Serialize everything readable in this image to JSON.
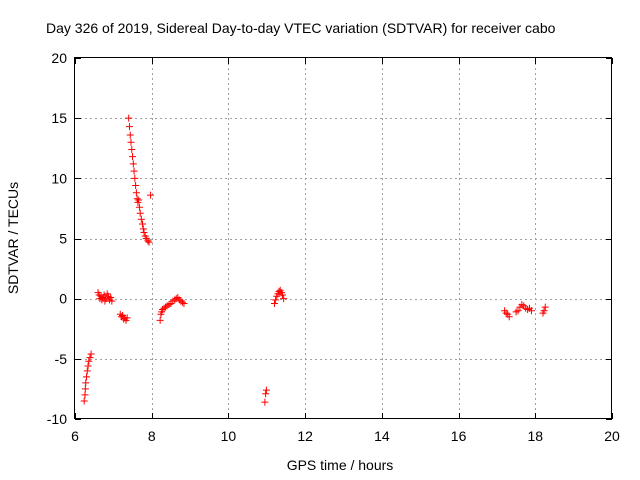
{
  "chart_data": {
    "type": "scatter",
    "title": "Day 326 of 2019, Sidereal Day-to-day VTEC variation (SDTVAR) for receiver cabo",
    "xlabel": "GPS time / hours",
    "ylabel": "SDTVAR / TECUs",
    "xlim": [
      6,
      20
    ],
    "ylim": [
      -10,
      20
    ],
    "xticks": [
      6,
      8,
      10,
      12,
      14,
      16,
      18,
      20
    ],
    "yticks": [
      -10,
      -5,
      0,
      5,
      10,
      15,
      20
    ],
    "grid": true,
    "legend": "none",
    "marker": "plus",
    "color": "#ff0000",
    "series": [
      {
        "name": "SDTVAR",
        "points": [
          [
            6.24,
            -8.5
          ],
          [
            6.26,
            -8.0
          ],
          [
            6.27,
            -7.5
          ],
          [
            6.28,
            -7.0
          ],
          [
            6.3,
            -6.5
          ],
          [
            6.32,
            -6.0
          ],
          [
            6.34,
            -5.6
          ],
          [
            6.36,
            -5.2
          ],
          [
            6.39,
            -4.9
          ],
          [
            6.42,
            -4.6
          ],
          [
            6.6,
            0.5
          ],
          [
            6.63,
            0.3
          ],
          [
            6.65,
            0.0
          ],
          [
            6.68,
            0.2
          ],
          [
            6.7,
            -0.1
          ],
          [
            6.73,
            0.1
          ],
          [
            6.76,
            0.3
          ],
          [
            6.78,
            -0.2
          ],
          [
            6.81,
            0.0
          ],
          [
            6.84,
            0.4
          ],
          [
            6.87,
            0.2
          ],
          [
            6.9,
            -0.1
          ],
          [
            6.93,
            0.1
          ],
          [
            6.96,
            -0.2
          ],
          [
            7.18,
            -1.3
          ],
          [
            7.21,
            -1.5
          ],
          [
            7.24,
            -1.4
          ],
          [
            7.27,
            -1.7
          ],
          [
            7.3,
            -1.6
          ],
          [
            7.33,
            -1.8
          ],
          [
            7.36,
            -1.6
          ],
          [
            7.4,
            15.0
          ],
          [
            7.42,
            14.3
          ],
          [
            7.44,
            13.6
          ],
          [
            7.46,
            13.0
          ],
          [
            7.48,
            12.4
          ],
          [
            7.5,
            11.8
          ],
          [
            7.52,
            11.2
          ],
          [
            7.54,
            10.6
          ],
          [
            7.56,
            10.0
          ],
          [
            7.58,
            9.4
          ],
          [
            7.6,
            8.8
          ],
          [
            7.62,
            8.3
          ],
          [
            7.64,
            8.0
          ],
          [
            7.66,
            8.2
          ],
          [
            7.68,
            7.6
          ],
          [
            7.7,
            7.1
          ],
          [
            7.73,
            6.6
          ],
          [
            7.76,
            6.2
          ],
          [
            7.78,
            5.8
          ],
          [
            7.8,
            5.5
          ],
          [
            7.83,
            5.2
          ],
          [
            7.86,
            5.0
          ],
          [
            7.9,
            4.8
          ],
          [
            7.93,
            4.7
          ],
          [
            7.97,
            8.6
          ],
          [
            8.22,
            -1.8
          ],
          [
            8.24,
            -1.3
          ],
          [
            8.26,
            -1.1
          ],
          [
            8.28,
            -0.9
          ],
          [
            8.32,
            -0.8
          ],
          [
            8.36,
            -0.7
          ],
          [
            8.4,
            -0.6
          ],
          [
            8.45,
            -0.5
          ],
          [
            8.5,
            -0.4
          ],
          [
            8.55,
            -0.2
          ],
          [
            8.6,
            -0.1
          ],
          [
            8.64,
            0.0
          ],
          [
            8.68,
            0.1
          ],
          [
            8.72,
            -0.1
          ],
          [
            8.76,
            -0.2
          ],
          [
            8.8,
            -0.3
          ],
          [
            8.84,
            -0.4
          ],
          [
            10.95,
            -8.6
          ],
          [
            10.97,
            -7.9
          ],
          [
            10.99,
            -7.6
          ],
          [
            11.2,
            -0.4
          ],
          [
            11.23,
            -0.1
          ],
          [
            11.26,
            0.2
          ],
          [
            11.29,
            0.4
          ],
          [
            11.32,
            0.6
          ],
          [
            11.35,
            0.7
          ],
          [
            11.38,
            0.5
          ],
          [
            11.41,
            0.3
          ],
          [
            11.44,
            0.0
          ],
          [
            17.2,
            -1.0
          ],
          [
            17.24,
            -1.2
          ],
          [
            17.28,
            -1.3
          ],
          [
            17.32,
            -1.5
          ],
          [
            17.5,
            -1.1
          ],
          [
            17.55,
            -1.0
          ],
          [
            17.6,
            -0.7
          ],
          [
            17.65,
            -0.5
          ],
          [
            17.7,
            -0.6
          ],
          [
            17.75,
            -0.8
          ],
          [
            17.8,
            -0.9
          ],
          [
            17.85,
            -0.8
          ],
          [
            17.9,
            -1.0
          ],
          [
            18.2,
            -1.2
          ],
          [
            18.23,
            -1.0
          ],
          [
            18.26,
            -0.7
          ]
        ]
      }
    ]
  }
}
